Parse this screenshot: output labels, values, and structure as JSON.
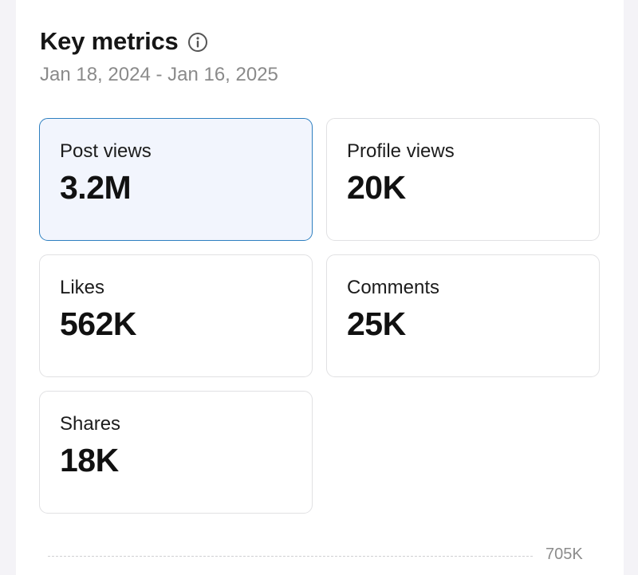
{
  "header": {
    "title": "Key metrics",
    "info_icon": "info-circle-icon",
    "date_range": "Jan 18, 2024 - Jan 16, 2025"
  },
  "metrics": [
    {
      "label": "Post views",
      "value": "3.2M",
      "selected": true
    },
    {
      "label": "Profile views",
      "value": "20K",
      "selected": false
    },
    {
      "label": "Likes",
      "value": "562K",
      "selected": false
    },
    {
      "label": "Comments",
      "value": "25K",
      "selected": false
    },
    {
      "label": "Shares",
      "value": "18K",
      "selected": false
    }
  ],
  "chart": {
    "top_tick_label": "705K"
  },
  "colors": {
    "selected_border": "#2d7fc0",
    "selected_background": "#f2f5fd",
    "card_border": "#e1e1e3"
  }
}
